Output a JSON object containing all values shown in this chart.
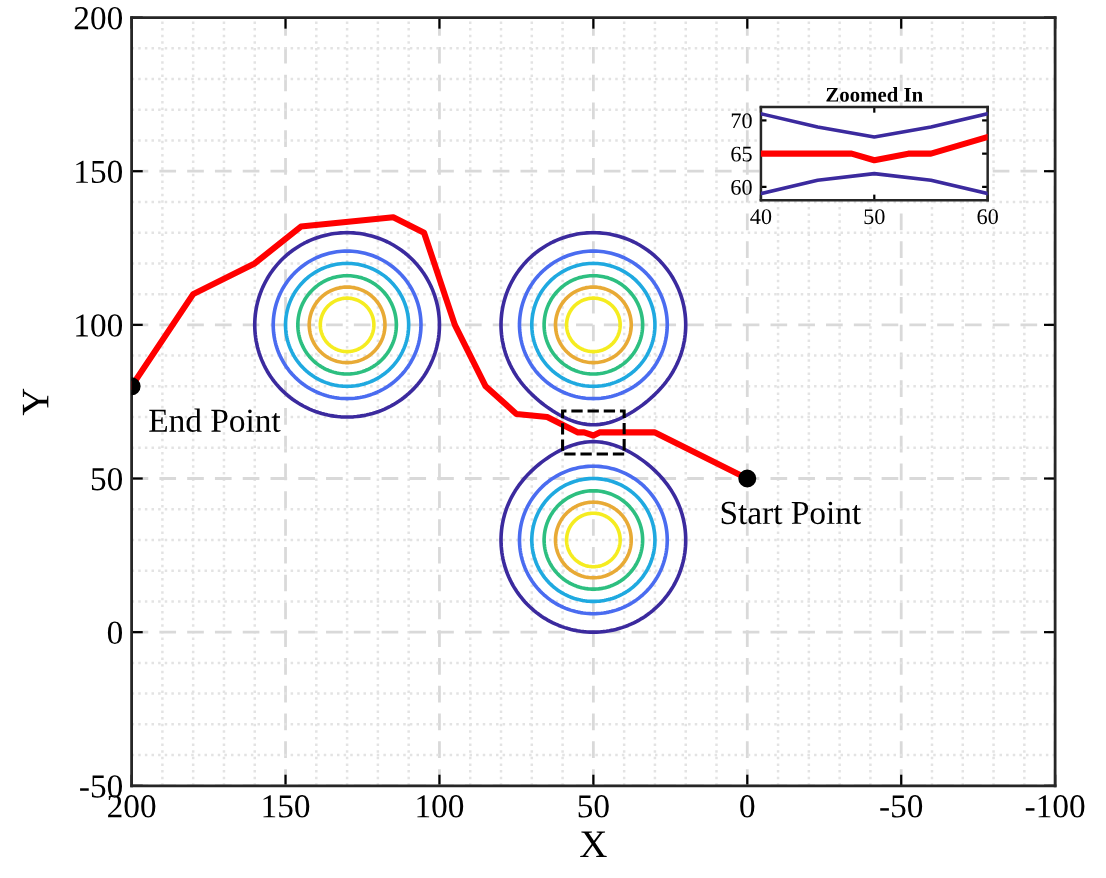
{
  "chart_data": [
    {
      "type": "line",
      "xlabel": "X",
      "ylabel": "Y",
      "xlim": [
        200,
        -100
      ],
      "xticks": [
        200,
        150,
        100,
        50,
        0,
        -50,
        -100
      ],
      "ylim": [
        -50,
        200
      ],
      "yticks": [
        -50,
        0,
        50,
        100,
        150,
        200
      ],
      "grid": true,
      "series": [
        {
          "color": "#ff0000",
          "x": [
            0,
            30,
            40,
            48,
            50,
            53,
            55,
            60,
            65,
            75,
            85,
            95,
            105,
            115,
            145,
            160,
            180,
            200
          ],
          "values": [
            50,
            65,
            65,
            65,
            64,
            65,
            65,
            67.5,
            70,
            71,
            80,
            100,
            130,
            135,
            132,
            120,
            110,
            80
          ]
        },
        {
          "type": "scatter",
          "marker": "circle",
          "color": "#000000",
          "x": [
            0,
            200
          ],
          "values": [
            50,
            80
          ]
        }
      ],
      "annotations": [
        {
          "text": "Start Point",
          "x": 0,
          "y": 50
        },
        {
          "text": "End Point",
          "x": 200,
          "y": 80
        }
      ]
    },
    {
      "type": "line",
      "title": "Zoomed In",
      "xlim": [
        40,
        60
      ],
      "xticks": [
        40,
        50,
        60
      ],
      "ylim": [
        58,
        72
      ],
      "yticks": [
        60,
        65,
        70
      ],
      "series": [
        {
          "color": "#3b2a9e",
          "x": [
            40,
            45,
            50,
            55,
            60
          ],
          "values": [
            71,
            69,
            67.5,
            69,
            71
          ]
        },
        {
          "color": "#3b2a9e",
          "x": [
            40,
            45,
            50,
            55,
            60
          ],
          "values": [
            59,
            61,
            62,
            61,
            59
          ]
        },
        {
          "color": "#ff0000",
          "x": [
            40,
            48,
            50,
            53,
            55,
            60
          ],
          "values": [
            65,
            65,
            64,
            65,
            65,
            67.5
          ]
        }
      ]
    }
  ]
}
